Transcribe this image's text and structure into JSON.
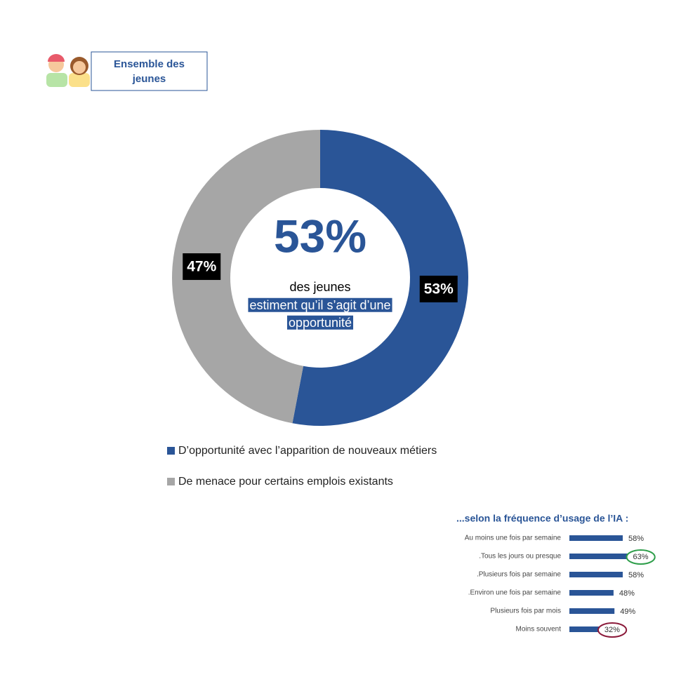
{
  "header": {
    "title": "Ensemble des jeunes"
  },
  "chart_data": [
    {
      "type": "donut",
      "categories": [
        "D’opportunité avec l’apparition de nouveaux métiers",
        "De menace pour certains emplois existants"
      ],
      "values": [
        53,
        47
      ],
      "value_labels": [
        "53%",
        "47%"
      ],
      "colors": [
        "#2a5597",
        "#a6a6a6"
      ],
      "annotations": [
        "53%",
        "des jeunes",
        "estiment qu’il s’agit d’une",
        "opportunité"
      ]
    },
    {
      "type": "bar",
      "title": "...selon la fréquence d’usage de l’IA :",
      "categories": [
        "Au moins une fois par semaine",
        ".Tous les jours ou presque",
        ".Plusieurs fois par semaine",
        ".Environ une fois par semaine",
        "Plusieurs fois par mois",
        "Moins souvent"
      ],
      "values": [
        58,
        63,
        58,
        48,
        49,
        32
      ],
      "value_labels": [
        "58%",
        "63%",
        "58%",
        "48%",
        "49%",
        "32%"
      ],
      "color": "#2a5597",
      "label_circles": [
        null,
        "#2e9e4a",
        null,
        null,
        null,
        "#8b1a3a"
      ]
    }
  ]
}
